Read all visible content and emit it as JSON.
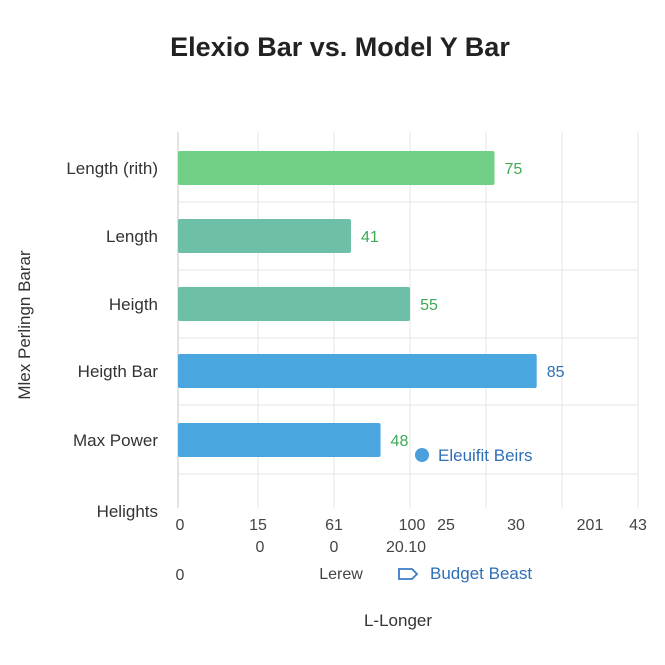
{
  "chart_data": {
    "type": "bar",
    "orientation": "horizontal",
    "title": "Elexio Bar   vs.  Model Y Bar",
    "ylabel": "Mlex Perlingn Barar",
    "xlabel": "L-Longer",
    "categories": [
      "Length (rith)",
      "Length",
      "Heigth",
      "Heigth Bar",
      "Max Power",
      "Helights"
    ],
    "values": [
      75,
      41,
      55,
      85,
      48,
      null
    ],
    "value_labels": [
      "75",
      "41",
      "55",
      "85",
      "48",
      ""
    ],
    "xlim": [
      0,
      100
    ],
    "grid": true,
    "x_tick_labels_row1": [
      "0",
      "15",
      "61",
      "100",
      "25",
      "30",
      "201",
      "43"
    ],
    "x_tick_labels_row2": [
      "0",
      "0",
      "20.10"
    ],
    "extra_labels": [
      "0",
      "Lerew"
    ],
    "legend": [
      {
        "name": "Eleuifit Beirs",
        "marker": "circle",
        "color": "#4b9fdc"
      },
      {
        "name": "Budget Beast",
        "marker": "tag",
        "color": "#3a7cc4"
      }
    ],
    "colors": {
      "green": "#72cf86",
      "teal": "#6dc0a7",
      "blue": "#4aa6df",
      "green_label": "#3daa55",
      "blue_label": "#2f6fb5"
    },
    "bar_colors": [
      "#72cf86",
      "#6dc0a7",
      "#6dc0a7",
      "#4aa6df",
      "#4aa6df",
      ""
    ],
    "label_colors": [
      "#3daa55",
      "#3daa55",
      "#3daa55",
      "#2f6fb5",
      "#3daa55",
      ""
    ]
  }
}
